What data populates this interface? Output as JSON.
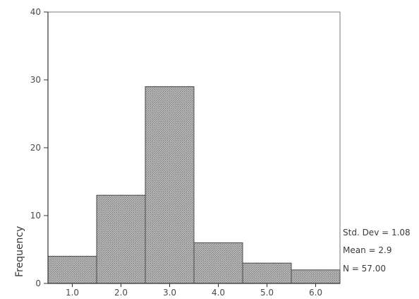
{
  "chart_data": {
    "type": "bar",
    "categories": [
      "1.0",
      "2.0",
      "3.0",
      "4.0",
      "5.0",
      "6.0"
    ],
    "values": [
      4,
      13,
      29,
      6,
      3,
      2
    ],
    "ylabel": "Frequency",
    "xlabel": "",
    "ylim": [
      0,
      40
    ],
    "xlim": [
      0.5,
      6.5
    ],
    "yticks": [
      "0",
      "10",
      "20",
      "30",
      "40"
    ],
    "grid": false,
    "bar_style": "histogram, stippled gray fill, adjacent bars",
    "stats": {
      "std_dev": "Std. Dev = 1.08",
      "mean": "Mean = 2.9",
      "n": "N = 57.00"
    }
  },
  "colors": {
    "bar_fill": "#a9a9a9",
    "bar_stroke": "#4a4a4a",
    "axis": "#333333",
    "frame": "#7a7a7a"
  }
}
